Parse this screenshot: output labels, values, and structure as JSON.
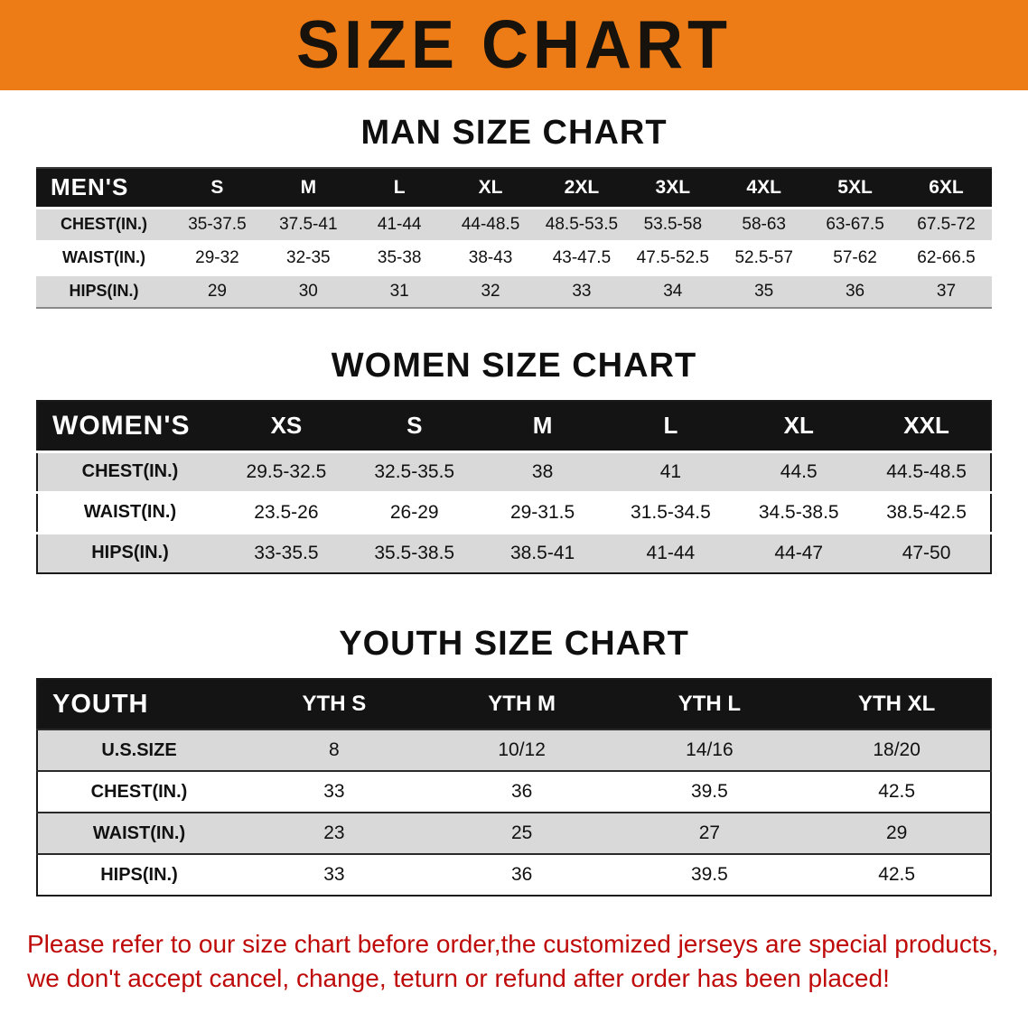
{
  "banner": {
    "title": "SIZE CHART"
  },
  "colors": {
    "banner_bg": "#ee7c16",
    "table_header_bg": "#141414",
    "row_alt_bg": "#d9d9d9",
    "disclaimer_text": "#bf0a0a"
  },
  "men": {
    "heading": "MAN SIZE CHART",
    "label": "MEN'S",
    "columns": [
      "S",
      "M",
      "L",
      "XL",
      "2XL",
      "3XL",
      "4XL",
      "5XL",
      "6XL"
    ],
    "rows": [
      {
        "label": "CHEST(IN.)",
        "values": [
          "35-37.5",
          "37.5-41",
          "41-44",
          "44-48.5",
          "48.5-53.5",
          "53.5-58",
          "58-63",
          "63-67.5",
          "67.5-72"
        ]
      },
      {
        "label": "WAIST(IN.)",
        "values": [
          "29-32",
          "32-35",
          "35-38",
          "38-43",
          "43-47.5",
          "47.5-52.5",
          "52.5-57",
          "57-62",
          "62-66.5"
        ]
      },
      {
        "label": "HIPS(IN.)",
        "values": [
          "29",
          "30",
          "31",
          "32",
          "33",
          "34",
          "35",
          "36",
          "37"
        ]
      }
    ]
  },
  "women": {
    "heading": "WOMEN SIZE CHART",
    "label": "WOMEN'S",
    "columns": [
      "XS",
      "S",
      "M",
      "L",
      "XL",
      "XXL"
    ],
    "rows": [
      {
        "label": "CHEST(IN.)",
        "values": [
          "29.5-32.5",
          "32.5-35.5",
          "38",
          "41",
          "44.5",
          "44.5-48.5"
        ]
      },
      {
        "label": "WAIST(IN.)",
        "values": [
          "23.5-26",
          "26-29",
          "29-31.5",
          "31.5-34.5",
          "34.5-38.5",
          "38.5-42.5"
        ]
      },
      {
        "label": "HIPS(IN.)",
        "values": [
          "33-35.5",
          "35.5-38.5",
          "38.5-41",
          "41-44",
          "44-47",
          "47-50"
        ]
      }
    ]
  },
  "youth": {
    "heading": "YOUTH SIZE CHART",
    "label": "YOUTH",
    "columns": [
      "YTH S",
      "YTH M",
      "YTH L",
      "YTH XL"
    ],
    "rows": [
      {
        "label": "U.S.SIZE",
        "values": [
          "8",
          "10/12",
          "14/16",
          "18/20"
        ]
      },
      {
        "label": "CHEST(IN.)",
        "values": [
          "33",
          "36",
          "39.5",
          "42.5"
        ]
      },
      {
        "label": "WAIST(IN.)",
        "values": [
          "23",
          "25",
          "27",
          "29"
        ]
      },
      {
        "label": "HIPS(IN.)",
        "values": [
          "33",
          "36",
          "39.5",
          "42.5"
        ]
      }
    ]
  },
  "disclaimer": {
    "line1": "Please refer to our size chart before order,the customized jerseys are special products,",
    "line2": "we don't accept cancel, change, teturn or refund after order has been placed!"
  }
}
